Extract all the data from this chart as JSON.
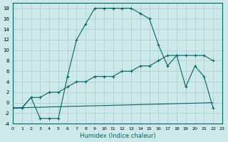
{
  "xlabel": "Humidex (Indice chaleur)",
  "bg_color": "#cde8e8",
  "grid_color": "#aacccc",
  "line_color": "#006666",
  "xlim": [
    0,
    23
  ],
  "ylim": [
    -4,
    19
  ],
  "xticks": [
    0,
    1,
    2,
    3,
    4,
    5,
    6,
    7,
    8,
    9,
    10,
    11,
    12,
    13,
    14,
    15,
    16,
    17,
    18,
    19,
    20,
    21,
    22,
    23
  ],
  "yticks": [
    -4,
    -2,
    0,
    2,
    4,
    6,
    8,
    10,
    12,
    14,
    16,
    18
  ],
  "line1_x": [
    0,
    1,
    2,
    3,
    4,
    5,
    6,
    7,
    8,
    9,
    10,
    11,
    12,
    13,
    14,
    15,
    16,
    17,
    18,
    19,
    20,
    21,
    22
  ],
  "line1_y": [
    -1,
    -1,
    1,
    -3,
    -3,
    -3,
    5,
    12,
    15,
    18,
    18,
    18,
    18,
    18,
    17,
    16,
    11,
    7,
    9,
    3,
    7,
    5,
    -1
  ],
  "line2_x": [
    0,
    1,
    2,
    3,
    4,
    5,
    6,
    7,
    8,
    9,
    10,
    11,
    12,
    13,
    14,
    15,
    16,
    17,
    18,
    19,
    20,
    21,
    22
  ],
  "line2_y": [
    -1,
    -1,
    1,
    1,
    2,
    2,
    3,
    4,
    4,
    5,
    5,
    5,
    6,
    6,
    7,
    7,
    8,
    9,
    9,
    9,
    9,
    9,
    8
  ],
  "line3_x": [
    0,
    22
  ],
  "line3_y": [
    -1,
    0
  ]
}
